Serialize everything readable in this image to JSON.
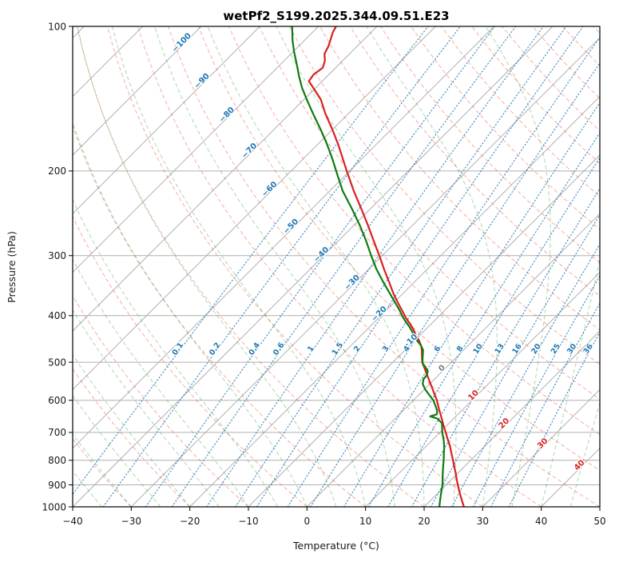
{
  "figure": {
    "background": "#ffffff"
  },
  "chart_data": {
    "type": "line",
    "chart_kind": "skewt-logp-sounding",
    "title": "wetPf2_S199.2025.344.09.51.E23",
    "xlabel": "Temperature (°C)",
    "ylabel": "Pressure (hPa)",
    "xlim": [
      -40,
      50
    ],
    "pressure_range": [
      100,
      1000
    ],
    "skew": "45deg",
    "grid": true,
    "legend": "none",
    "x_tick_values": [
      -40,
      -30,
      -20,
      -10,
      0,
      10,
      20,
      30,
      40,
      50
    ],
    "x_tick_labels": [
      "−40",
      "−30",
      "−20",
      "−10",
      "0",
      "10",
      "20",
      "30",
      "40",
      "50"
    ],
    "y_tick_values": [
      100,
      200,
      300,
      400,
      500,
      600,
      700,
      800,
      900,
      1000
    ],
    "y_tick_labels": [
      "100",
      "200",
      "300",
      "400",
      "500",
      "600",
      "700",
      "800",
      "900",
      "1000"
    ],
    "isobars": {
      "levels": [
        100,
        200,
        300,
        400,
        500,
        600,
        700,
        800,
        900,
        1000
      ],
      "color": "#b0b0b0"
    },
    "isotherms": {
      "min": -120,
      "max": 50,
      "step": 10,
      "color": "#b0b0b0"
    },
    "dry_adiabats": {
      "theta_min": -40,
      "theta_max": 200,
      "step": 10,
      "color": "rgba(231,76,60,0.42)"
    },
    "moist_adiabats": {
      "t0_min": -40,
      "t0_max": 50,
      "step": 5,
      "color": "rgba(34,139,34,0.33)"
    },
    "mixing_ratio": {
      "values": [
        0.1,
        0.2,
        0.4,
        0.6,
        1,
        1.5,
        2,
        3,
        4,
        6,
        8,
        10,
        13,
        16,
        20,
        25,
        30,
        36
      ],
      "labels": [
        "0.1",
        "0.2",
        "0.4",
        "0.6",
        "1",
        "1.5",
        "2",
        "3",
        "4",
        "6",
        "8",
        "10",
        "13",
        "16",
        "20",
        "25",
        "30",
        "36"
      ],
      "color": "rgba(31,119,180,0.78)",
      "label_pressure": 472,
      "label_color": "#2078b4"
    },
    "isotherm_labels": [
      {
        "text": "−100",
        "value": -100,
        "p": 109,
        "color": "#2078b4"
      },
      {
        "text": "−90",
        "value": -90,
        "p": 131,
        "color": "#2078b4"
      },
      {
        "text": "−80",
        "value": -80,
        "p": 154,
        "color": "#2078b4"
      },
      {
        "text": "−70",
        "value": -70,
        "p": 183,
        "color": "#2078b4"
      },
      {
        "text": "−60",
        "value": -60,
        "p": 220,
        "color": "#2078b4"
      },
      {
        "text": "−50",
        "value": -50,
        "p": 263,
        "color": "#2078b4"
      },
      {
        "text": "−40",
        "value": -40,
        "p": 301,
        "color": "#2078b4"
      },
      {
        "text": "−30",
        "value": -30,
        "p": 344,
        "color": "#2078b4"
      },
      {
        "text": "−20",
        "value": -20,
        "p": 400,
        "color": "#2078b4"
      },
      {
        "text": "−10",
        "value": -10,
        "p": 457,
        "color": "#2078b4"
      },
      {
        "text": "0",
        "value": 0,
        "p": 519,
        "color": "#7f7f7f"
      },
      {
        "text": "10",
        "value": 10,
        "p": 591,
        "color": "#d62728"
      },
      {
        "text": "20",
        "value": 20,
        "p": 676,
        "color": "#d62728"
      },
      {
        "text": "30",
        "value": 30,
        "p": 744,
        "color": "#d62728"
      },
      {
        "text": "40",
        "value": 40,
        "p": 826,
        "color": "#d62728"
      }
    ],
    "series": [
      {
        "name": "temperature",
        "color": "#dc1f1f",
        "width": 2.2,
        "points": [
          [
            1000,
            26.8
          ],
          [
            975,
            25.6
          ],
          [
            950,
            24.4
          ],
          [
            925,
            23.2
          ],
          [
            900,
            22
          ],
          [
            875,
            20.8
          ],
          [
            850,
            19.6
          ],
          [
            825,
            18.3
          ],
          [
            800,
            17
          ],
          [
            775,
            15.6
          ],
          [
            750,
            14.2
          ],
          [
            725,
            12.6
          ],
          [
            700,
            11
          ],
          [
            675,
            9.3
          ],
          [
            650,
            7.6
          ],
          [
            625,
            5.8
          ],
          [
            600,
            4
          ],
          [
            575,
            1.9
          ],
          [
            550,
            -0.3
          ],
          [
            525,
            -2.6
          ],
          [
            500,
            -5
          ],
          [
            488,
            -5.9
          ],
          [
            476,
            -6.8
          ],
          [
            464,
            -7.8
          ],
          [
            452,
            -9.1
          ],
          [
            440,
            -10.6
          ],
          [
            428,
            -12
          ],
          [
            416,
            -13.6
          ],
          [
            404,
            -15.4
          ],
          [
            392,
            -17
          ],
          [
            378,
            -19
          ],
          [
            360,
            -21.6
          ],
          [
            340,
            -24.4
          ],
          [
            320,
            -27.4
          ],
          [
            300,
            -30.5
          ],
          [
            280,
            -33.9
          ],
          [
            260,
            -37.5
          ],
          [
            240,
            -41.5
          ],
          [
            220,
            -45.9
          ],
          [
            200,
            -50.5
          ],
          [
            188,
            -53.4
          ],
          [
            176,
            -56.5
          ],
          [
            164,
            -60
          ],
          [
            152,
            -63.9
          ],
          [
            142,
            -67.1
          ],
          [
            134,
            -70.5
          ],
          [
            130,
            -72.3
          ],
          [
            126,
            -72.6
          ],
          [
            122,
            -72.2
          ],
          [
            118,
            -73
          ],
          [
            114,
            -74.3
          ],
          [
            110,
            -74.9
          ],
          [
            106,
            -75.8
          ],
          [
            103,
            -76.5
          ],
          [
            100,
            -77
          ]
        ]
      },
      {
        "name": "dewpoint",
        "color": "#0e7c0e",
        "width": 2.2,
        "points": [
          [
            1000,
            22.6
          ],
          [
            975,
            21.8
          ],
          [
            950,
            21
          ],
          [
            925,
            20.2
          ],
          [
            900,
            19.4
          ],
          [
            875,
            18.4
          ],
          [
            850,
            17.4
          ],
          [
            825,
            16.4
          ],
          [
            800,
            15.4
          ],
          [
            775,
            14.3
          ],
          [
            750,
            13.2
          ],
          [
            725,
            11.9
          ],
          [
            710,
            11
          ],
          [
            700,
            10.4
          ],
          [
            685,
            9.6
          ],
          [
            670,
            8.8
          ],
          [
            655,
            7.2
          ],
          [
            648,
            5.6
          ],
          [
            642,
            6.4
          ],
          [
            632,
            5.9
          ],
          [
            620,
            5
          ],
          [
            610,
            4.2
          ],
          [
            600,
            3.4
          ],
          [
            585,
            1.8
          ],
          [
            570,
            0.2
          ],
          [
            555,
            -1.2
          ],
          [
            542,
            -1.9
          ],
          [
            532,
            -2
          ],
          [
            522,
            -2.5
          ],
          [
            512,
            -3.6
          ],
          [
            502,
            -4.8
          ],
          [
            492,
            -5.5
          ],
          [
            482,
            -6.2
          ],
          [
            472,
            -6.9
          ],
          [
            462,
            -8
          ],
          [
            452,
            -9.4
          ],
          [
            442,
            -10.6
          ],
          [
            432,
            -11.9
          ],
          [
            422,
            -13.2
          ],
          [
            412,
            -14.7
          ],
          [
            402,
            -16.1
          ],
          [
            390,
            -17.7
          ],
          [
            375,
            -19.9
          ],
          [
            358,
            -22.5
          ],
          [
            340,
            -25.4
          ],
          [
            320,
            -28.7
          ],
          [
            300,
            -31.9
          ],
          [
            280,
            -35.2
          ],
          [
            260,
            -38.9
          ],
          [
            240,
            -43.1
          ],
          [
            220,
            -47.8
          ],
          [
            200,
            -52.3
          ],
          [
            188,
            -55.2
          ],
          [
            176,
            -58.4
          ],
          [
            164,
            -62
          ],
          [
            152,
            -66
          ],
          [
            142,
            -69.5
          ],
          [
            134,
            -72.4
          ],
          [
            127,
            -74.8
          ],
          [
            120,
            -77.2
          ],
          [
            113,
            -79.8
          ],
          [
            107,
            -82
          ],
          [
            103,
            -83.4
          ],
          [
            100,
            -84.5
          ]
        ]
      }
    ]
  }
}
